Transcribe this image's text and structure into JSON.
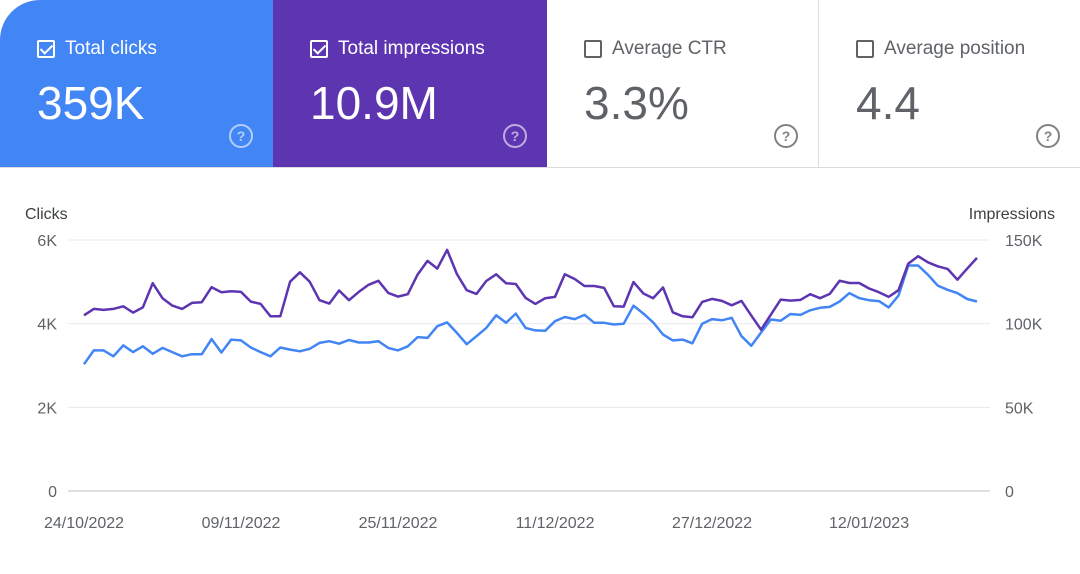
{
  "tiles": [
    {
      "label": "Total clicks",
      "value": "359K",
      "checked": true,
      "color": "#4285f4"
    },
    {
      "label": "Total impressions",
      "value": "10.9M",
      "checked": true,
      "color": "#5e35b1"
    },
    {
      "label": "Average CTR",
      "value": "3.3%",
      "checked": false
    },
    {
      "label": "Average position",
      "value": "4.4",
      "checked": false
    }
  ],
  "help_icon": "question-circle-icon",
  "chart_data": {
    "type": "line",
    "grid": true,
    "left_axis": {
      "label": "Clicks",
      "range": [
        0,
        6000
      ],
      "ticks": [
        "0",
        "2K",
        "4K",
        "6K"
      ]
    },
    "right_axis": {
      "label": "Impressions",
      "range": [
        0,
        150000
      ],
      "ticks": [
        "0",
        "50K",
        "100K",
        "150K"
      ]
    },
    "x_tick_labels": [
      "24/10/2022",
      "09/11/2022",
      "25/11/2022",
      "11/12/2022",
      "27/12/2022",
      "12/01/2023"
    ],
    "x": [
      "24/10/2022",
      "25/10/2022",
      "26/10/2022",
      "27/10/2022",
      "28/10/2022",
      "29/10/2022",
      "30/10/2022",
      "31/10/2022",
      "01/11/2022",
      "02/11/2022",
      "03/11/2022",
      "04/11/2022",
      "05/11/2022",
      "06/11/2022",
      "07/11/2022",
      "08/11/2022",
      "09/11/2022",
      "10/11/2022",
      "11/11/2022",
      "12/11/2022",
      "13/11/2022",
      "14/11/2022",
      "15/11/2022",
      "16/11/2022",
      "17/11/2022",
      "18/11/2022",
      "19/11/2022",
      "20/11/2022",
      "21/11/2022",
      "22/11/2022",
      "23/11/2022",
      "24/11/2022",
      "25/11/2022",
      "26/11/2022",
      "27/11/2022",
      "28/11/2022",
      "29/11/2022",
      "30/11/2022",
      "01/12/2022",
      "02/12/2022",
      "03/12/2022",
      "04/12/2022",
      "05/12/2022",
      "06/12/2022",
      "07/12/2022",
      "08/12/2022",
      "09/12/2022",
      "10/12/2022",
      "11/12/2022",
      "12/12/2022",
      "13/12/2022",
      "14/12/2022",
      "15/12/2022",
      "16/12/2022",
      "17/12/2022",
      "18/12/2022",
      "19/12/2022",
      "20/12/2022",
      "21/12/2022",
      "22/12/2022",
      "23/12/2022",
      "24/12/2022",
      "25/12/2022",
      "26/12/2022",
      "27/12/2022",
      "28/12/2022",
      "29/12/2022",
      "30/12/2022",
      "31/12/2022",
      "01/01/2023",
      "02/01/2023",
      "03/01/2023",
      "04/01/2023",
      "05/01/2023",
      "06/01/2023",
      "07/01/2023",
      "08/01/2023",
      "09/01/2023",
      "10/01/2023",
      "11/01/2023",
      "12/01/2023",
      "13/01/2023",
      "14/01/2023",
      "15/01/2023",
      "16/01/2023",
      "17/01/2023",
      "18/01/2023",
      "19/01/2023",
      "20/01/2023",
      "21/01/2023",
      "22/01/2023",
      "23/01/2023"
    ],
    "series": [
      {
        "name": "Clicks",
        "axis": "left",
        "color": "#4285f4",
        "values": [
          3030,
          3360,
          3360,
          3220,
          3480,
          3320,
          3460,
          3280,
          3420,
          3320,
          3220,
          3270,
          3270,
          3630,
          3310,
          3620,
          3600,
          3430,
          3320,
          3220,
          3430,
          3380,
          3340,
          3400,
          3540,
          3580,
          3520,
          3610,
          3550,
          3550,
          3580,
          3420,
          3360,
          3460,
          3680,
          3660,
          3940,
          4030,
          3780,
          3510,
          3700,
          3900,
          4200,
          4020,
          4240,
          3900,
          3840,
          3830,
          4060,
          4160,
          4110,
          4210,
          4020,
          4020,
          3980,
          4000,
          4430,
          4240,
          4030,
          3740,
          3600,
          3620,
          3530,
          4000,
          4110,
          4080,
          4140,
          3700,
          3470,
          3790,
          4100,
          4070,
          4230,
          4210,
          4320,
          4380,
          4400,
          4530,
          4730,
          4610,
          4560,
          4540,
          4390,
          4670,
          5390,
          5390,
          5170,
          4910,
          4810,
          4730,
          4590,
          4530
        ]
      },
      {
        "name": "Impressions",
        "axis": "right",
        "color": "#5e35b1",
        "values": [
          105000,
          108800,
          108200,
          108800,
          110400,
          106600,
          109800,
          124200,
          115200,
          110800,
          108800,
          112400,
          112800,
          121800,
          118800,
          119400,
          119000,
          113200,
          111800,
          104400,
          104400,
          125100,
          130700,
          125100,
          114000,
          112000,
          119800,
          114000,
          119000,
          123200,
          125600,
          118400,
          116200,
          117600,
          129300,
          137500,
          132900,
          144100,
          129700,
          120000,
          117800,
          125500,
          129500,
          124200,
          123700,
          115400,
          111800,
          115200,
          116000,
          129500,
          126700,
          122500,
          122500,
          121400,
          110400,
          110200,
          124900,
          118000,
          115200,
          121600,
          106800,
          104400,
          103800,
          113000,
          114800,
          113600,
          111000,
          113600,
          104800,
          96400,
          105400,
          114400,
          113800,
          114200,
          117600,
          115200,
          117800,
          125700,
          124300,
          124300,
          121000,
          118800,
          116000,
          120000,
          135900,
          140300,
          136700,
          134300,
          132700,
          126300,
          132900,
          139300
        ]
      }
    ]
  }
}
